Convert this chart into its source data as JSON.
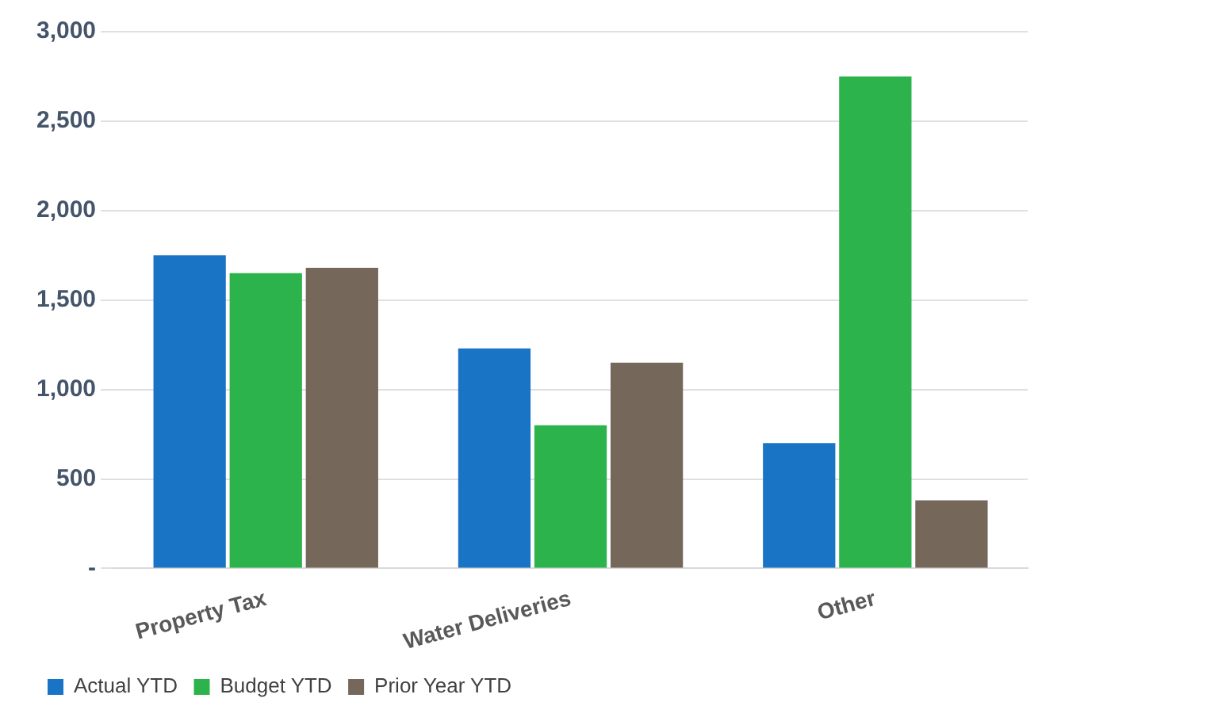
{
  "chart_data": {
    "type": "bar",
    "categories": [
      "Property Tax",
      "Water Deliveries",
      "Other"
    ],
    "series": [
      {
        "name": "Actual YTD",
        "color": "#1a74c6",
        "values": [
          1750,
          1230,
          700
        ]
      },
      {
        "name": "Budget YTD",
        "color": "#2db34b",
        "values": [
          1650,
          800,
          2750
        ]
      },
      {
        "name": "Prior Year YTD",
        "color": "#75685a",
        "values": [
          1680,
          1150,
          380
        ]
      }
    ],
    "ylim": [
      0,
      3000
    ],
    "yticks": [
      {
        "value": 0,
        "label": "-"
      },
      {
        "value": 500,
        "label": "500"
      },
      {
        "value": 1000,
        "label": "1,000"
      },
      {
        "value": 1500,
        "label": "1,500"
      },
      {
        "value": 2000,
        "label": "2,000"
      },
      {
        "value": 2500,
        "label": "2,500"
      },
      {
        "value": 3000,
        "label": "3,000"
      }
    ],
    "grid": "y",
    "legend": "bottom left"
  }
}
